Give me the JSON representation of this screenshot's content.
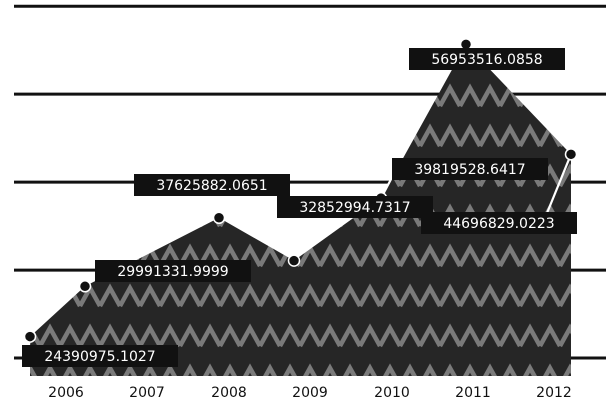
{
  "chart_data": {
    "type": "area",
    "title": "",
    "xlabel": "",
    "ylabel": "",
    "x": [
      "2006",
      "2007",
      "2008",
      "2009",
      "2010",
      "2011",
      "2012"
    ],
    "ylim": [
      21000000,
      61000000
    ],
    "y_gridlines": [
      22000000,
      31800000,
      41600000,
      51400000,
      61200000
    ],
    "grid": true,
    "y_tick_labels_shown": false,
    "series": [
      {
        "values": [
          24390975.1027,
          29991331.9999,
          37625882.0651,
          32852994.7317,
          39819528.6417,
          56953516.0858,
          44696829.0223
        ],
        "labels": [
          "24390975.1027",
          "29991331.9999",
          "37625882.0651",
          "32852994.7317",
          "39819528.6417",
          "56953516.0858",
          "44696829.0223"
        ]
      }
    ],
    "fill_pattern": "zigzag",
    "colors": {
      "fill": "#262626",
      "zigzag": "#7a7a7a",
      "label_bg": "#111111",
      "label_text": "#ffffff",
      "grid": "#111111",
      "marker": "#111111"
    }
  }
}
